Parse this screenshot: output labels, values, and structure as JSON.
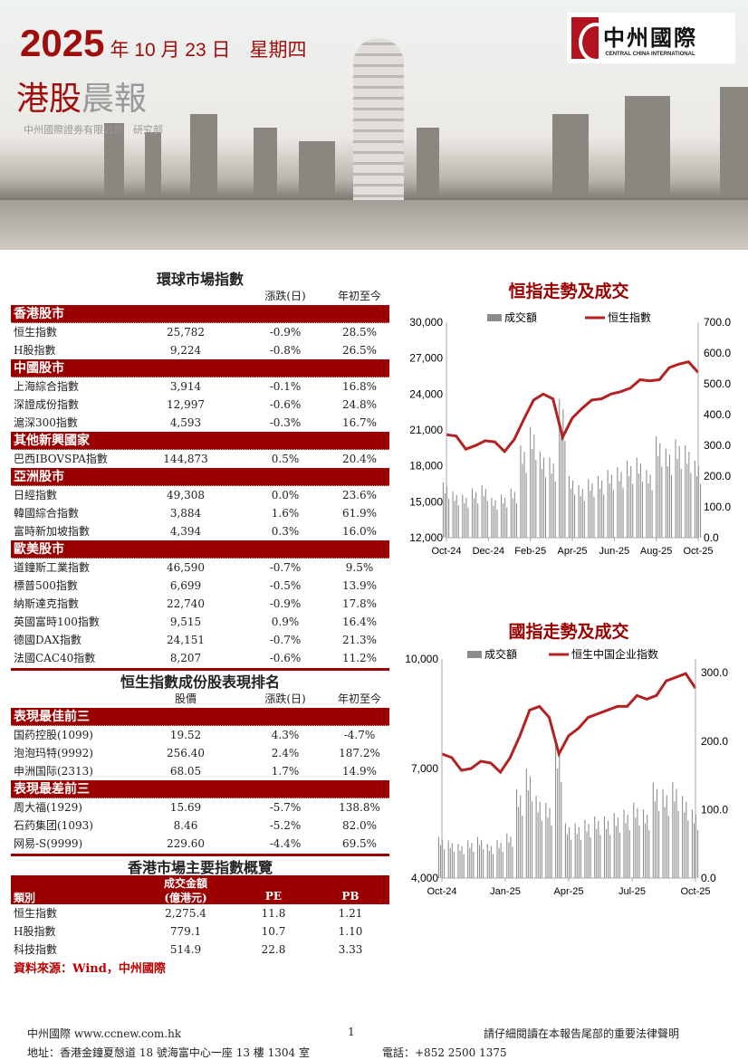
{
  "header": {
    "year": "2025",
    "date_rest": "年 10 月 23 日　星期四",
    "title_a": "港股",
    "title_b": "晨報",
    "org": "中州國際證券有限公司　研究部",
    "logo_cn": "中州國際",
    "logo_en": "CENTRAL CHINA INTERNATIONAL"
  },
  "global": {
    "title": "環球市場指數",
    "cols": [
      "",
      "",
      "漲跌(日)",
      "年初至今"
    ],
    "sections": [
      {
        "name": "香港股市",
        "rows": [
          [
            "恒生指數",
            "25,782",
            "-0.9%",
            "28.5%"
          ],
          [
            "H股指數",
            "9,224",
            "-0.8%",
            "26.5%"
          ]
        ]
      },
      {
        "name": "中國股市",
        "rows": [
          [
            "上海綜合指數",
            "3,914",
            "-0.1%",
            "16.8%"
          ],
          [
            "深證成份指數",
            "12,997",
            "-0.6%",
            "24.8%"
          ],
          [
            "滬深300指數",
            "4,593",
            "-0.3%",
            "16.7%"
          ]
        ]
      },
      {
        "name": "其他新興國家",
        "rows": [
          [
            "巴西IBOVSPA指數",
            "144,873",
            "0.5%",
            "20.4%"
          ]
        ]
      },
      {
        "name": "亞洲股市",
        "rows": [
          [
            "日經指數",
            "49,308",
            "0.0%",
            "23.6%"
          ],
          [
            "韓國綜合指數",
            "3,884",
            "1.6%",
            "61.9%"
          ],
          [
            "富時新加坡指數",
            "4,394",
            "0.3%",
            "16.0%"
          ]
        ]
      },
      {
        "name": "歐美股市",
        "rows": [
          [
            "道鐘斯工業指數",
            "46,590",
            "-0.7%",
            "9.5%"
          ],
          [
            "標普500指數",
            "6,699",
            "-0.5%",
            "13.9%"
          ],
          [
            "納斯達克指數",
            "22,740",
            "-0.9%",
            "17.8%"
          ],
          [
            "英國富時100指數",
            "9,515",
            "0.9%",
            "16.4%"
          ],
          [
            "德國DAX指數",
            "24,151",
            "-0.7%",
            "21.3%"
          ],
          [
            "法國CAC40指數",
            "8,207",
            "-0.6%",
            "11.2%"
          ]
        ]
      }
    ]
  },
  "rank": {
    "title": "恒生指數成份股表現排名",
    "cols": [
      "",
      "股價",
      "漲跌(日)",
      "年初至今"
    ],
    "sections": [
      {
        "name": "表現最佳前三",
        "rows": [
          [
            "国药控股(1099)",
            "19.52",
            "4.3%",
            "-4.7%"
          ],
          [
            "泡泡玛特(9992)",
            "256.40",
            "2.4%",
            "187.2%"
          ],
          [
            "申洲国际(2313)",
            "68.05",
            "1.7%",
            "14.9%"
          ]
        ]
      },
      {
        "name": "表現最差前三",
        "rows": [
          [
            "周大福(1929)",
            "15.69",
            "-5.7%",
            "138.8%"
          ],
          [
            "石药集团(1093)",
            "8.46",
            "-5.2%",
            "82.0%"
          ],
          [
            "网易-S(9999)",
            "229.60",
            "-4.4%",
            "69.5%"
          ]
        ]
      }
    ]
  },
  "overview": {
    "title": "香港市場主要指數概覽",
    "cols": [
      "類別",
      "成交金額",
      "(億港元)",
      "PE",
      "PB"
    ],
    "rows": [
      [
        "恒生指數",
        "2,275.4",
        "11.8",
        "1.21"
      ],
      [
        "H股指數",
        "779.1",
        "10.7",
        "1.10"
      ],
      [
        "科技指數",
        "514.9",
        "22.8",
        "3.33"
      ]
    ],
    "source": "資料來源：Wind，中州國際"
  },
  "footer": {
    "left": "中州國際 www.ccnew.com.hk",
    "page": "1",
    "right": "請仔細閱讀在本報告尾部的重要法律聲明",
    "address": "地址：香港金鐘夏慤道 18 號海富中心一座 13 樓 1304 室",
    "phone": "電話：+852 2500 1375"
  },
  "chart_data": [
    {
      "type": "bar+line",
      "title": "恒指走勢及成交",
      "legend": [
        "成交額",
        "恒生指數"
      ],
      "legend_placement": "top",
      "dates": [
        "2024-10-23",
        "2024-11-06",
        "2024-11-20",
        "2024-12-04",
        "2024-12-18",
        "2025-01-01",
        "2025-01-15",
        "2025-01-29",
        "2025-02-12",
        "2025-02-26",
        "2025-03-12",
        "2025-03-26",
        "2025-04-09",
        "2025-04-23",
        "2025-05-07",
        "2025-05-21",
        "2025-06-04",
        "2025-06-18",
        "2025-07-02",
        "2025-07-16",
        "2025-07-30",
        "2025-08-13",
        "2025-08-27",
        "2025-09-10",
        "2025-09-24",
        "2025-10-08",
        "2025-10-22"
      ],
      "line": [
        20600,
        20500,
        19400,
        19700,
        20100,
        20000,
        19200,
        20200,
        21900,
        23500,
        24000,
        23600,
        20400,
        22000,
        22800,
        23500,
        23600,
        24000,
        24200,
        24500,
        25200,
        25100,
        25200,
        26200,
        26500,
        26700,
        25800
      ],
      "bars": [
        180,
        150,
        140,
        160,
        170,
        130,
        140,
        160,
        300,
        360,
        280,
        260,
        450,
        200,
        170,
        190,
        200,
        220,
        230,
        250,
        260,
        220,
        330,
        290,
        320,
        300,
        250
      ],
      "xticks": [
        "Oct-24",
        "Dec-24",
        "Feb-25",
        "Apr-25",
        "Jun-25",
        "Aug-25",
        "Oct-25"
      ],
      "ylim_left": [
        12000,
        30000
      ],
      "yticks_left": [
        "12,000",
        "15,000",
        "18,000",
        "21,000",
        "24,000",
        "27,000",
        "30,000"
      ],
      "ylim_right": [
        0,
        700
      ],
      "yticks_right": [
        "0.0",
        "100.0",
        "200.0",
        "300.0",
        "400.0",
        "500.0",
        "600.0",
        "700.0"
      ],
      "colors": {
        "bar": "#8c8c8c",
        "line": "#b22222"
      }
    },
    {
      "type": "bar+line",
      "title": "國指走勢及成交",
      "legend": [
        "成交額",
        "恒生中国企业指数"
      ],
      "legend_placement": "top",
      "dates": [
        "2024-10-23",
        "2024-11-06",
        "2024-11-20",
        "2024-12-04",
        "2024-12-18",
        "2025-01-01",
        "2025-01-15",
        "2025-01-29",
        "2025-02-12",
        "2025-02-26",
        "2025-03-12",
        "2025-03-26",
        "2025-04-09",
        "2025-04-23",
        "2025-05-07",
        "2025-05-21",
        "2025-06-04",
        "2025-06-18",
        "2025-07-02",
        "2025-07-16",
        "2025-07-30",
        "2025-08-13",
        "2025-08-27",
        "2025-09-10",
        "2025-09-24",
        "2025-10-08",
        "2025-10-22"
      ],
      "line": [
        7400,
        7300,
        6950,
        7000,
        7200,
        7150,
        6900,
        7300,
        7900,
        8600,
        8700,
        8400,
        7400,
        7900,
        8100,
        8400,
        8500,
        8600,
        8700,
        8700,
        9000,
        8900,
        9000,
        9400,
        9500,
        9600,
        9200
      ],
      "bars": [
        60,
        55,
        50,
        55,
        60,
        50,
        55,
        65,
        130,
        160,
        120,
        110,
        200,
        80,
        80,
        85,
        90,
        90,
        95,
        100,
        110,
        100,
        140,
        130,
        140,
        120,
        100
      ],
      "xticks": [
        "Oct-24",
        "Jan-25",
        "Apr-25",
        "Jul-25",
        "Oct-25"
      ],
      "ylim_left": [
        4000,
        10000
      ],
      "yticks_left": [
        "4,000",
        "7,000",
        "10,000"
      ],
      "ylim_right": [
        0,
        320
      ],
      "yticks_right": [
        "0.0",
        "100.0",
        "200.0",
        "300.0"
      ],
      "colors": {
        "bar": "#8c8c8c",
        "line": "#b22222"
      }
    }
  ]
}
